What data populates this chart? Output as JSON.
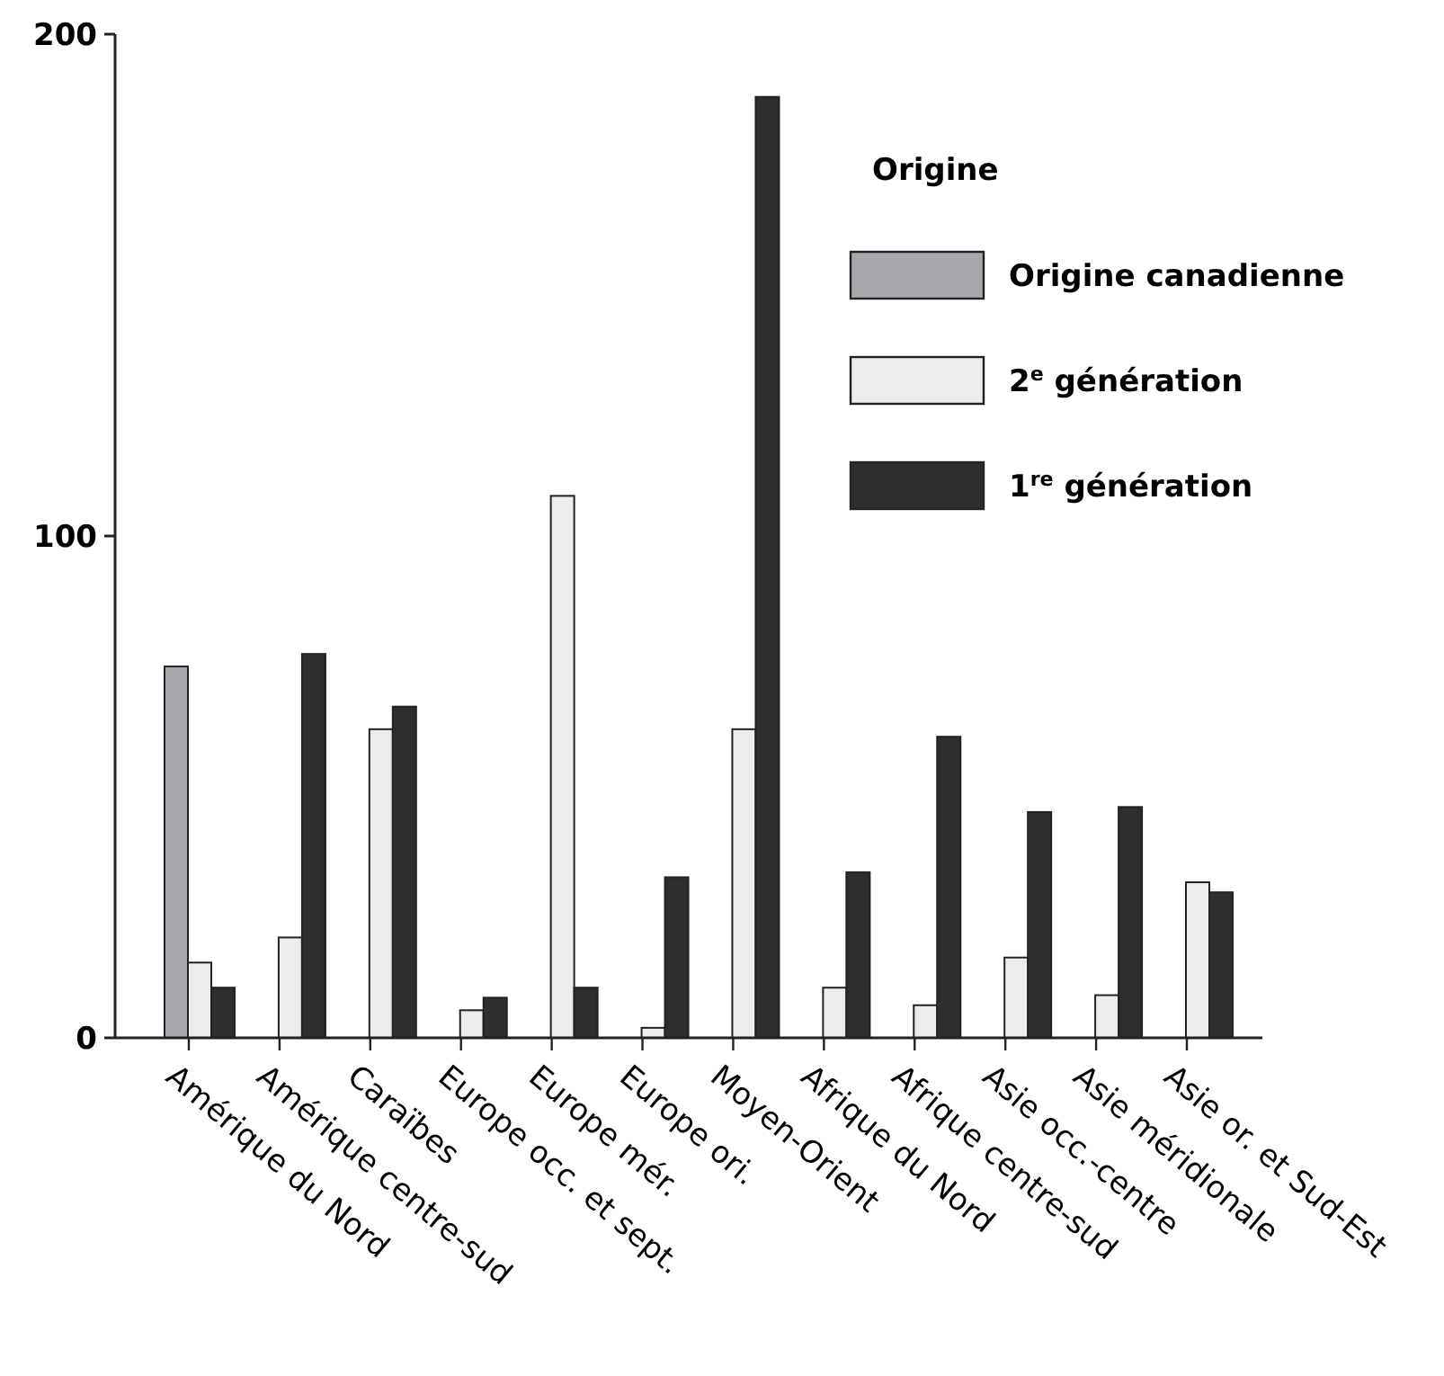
{
  "chart_data": {
    "type": "bar",
    "categories": [
      "Amérique du Nord",
      "Amérique centre-sud",
      "Caraïbes",
      "Europe occ. et sept.",
      "Europe mér.",
      "Europe ori.",
      "Moyen-Orient",
      "Afrique du Nord",
      "Afrique centre-sud",
      "Asie occ.-centre",
      "Asie méridionale",
      "Asie or. et Sud-Est"
    ],
    "series": [
      {
        "name": "Origine canadienne",
        "color": "#a7a8ab",
        "values": [
          74,
          null,
          null,
          null,
          null,
          null,
          null,
          null,
          null,
          null,
          null,
          null
        ]
      },
      {
        "name": "2$^{e}$ génération",
        "color": "#ececec",
        "values": [
          15,
          20,
          61.5,
          5.5,
          108,
          2,
          61.5,
          10,
          6.5,
          16,
          8.5,
          31
        ]
      },
      {
        "name": "1$^{re}$ génération",
        "color": "#2f2d2e",
        "values": [
          10,
          76.5,
          66,
          8,
          10,
          32,
          187.5,
          33,
          60,
          45,
          46,
          29
        ]
      }
    ],
    "ylim": [
      0,
      200
    ],
    "yticks": [
      0,
      100,
      200
    ],
    "legend": "top right",
    "legend_title": "Origine",
    "grid": false
  }
}
